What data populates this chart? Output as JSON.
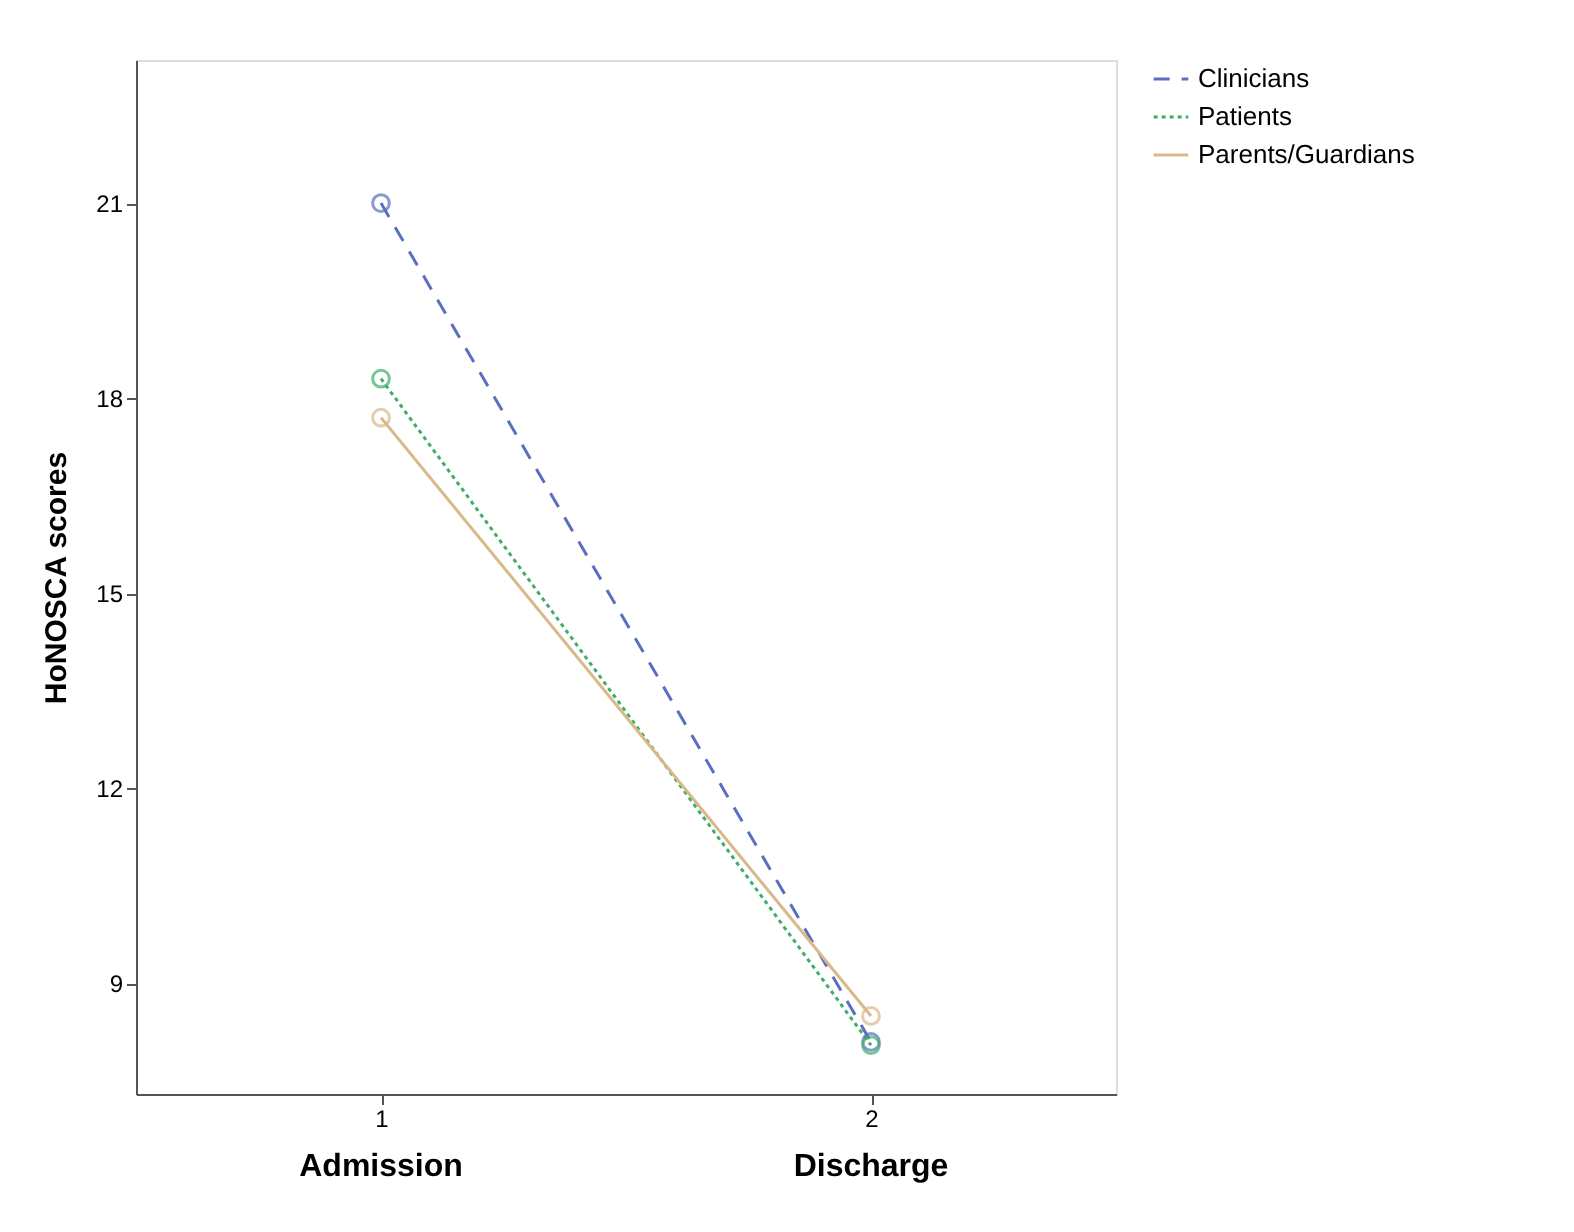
{
  "chart_data": {
    "type": "line",
    "ylabel": "HoNOSCA scores",
    "categories": [
      "1",
      "2"
    ],
    "annotations": [
      "Admission",
      "Discharge"
    ],
    "series": [
      {
        "name": "Clinicians",
        "color": "#5a6fc0",
        "line_style": "dashed",
        "values": [
          21.0,
          8.1
        ]
      },
      {
        "name": "Patients",
        "color": "#3fae6a",
        "line_style": "dotted",
        "values": [
          18.3,
          8.05
        ]
      },
      {
        "name": "Parents/Guardians",
        "color": "#d9b98a",
        "line_style": "solid",
        "values": [
          17.7,
          8.5
        ]
      }
    ],
    "ylim": [
      7.3,
      23.2
    ],
    "yticks": [
      9,
      12,
      15,
      18,
      21
    ],
    "marker": "circle",
    "grid": false,
    "legend": "top right"
  }
}
